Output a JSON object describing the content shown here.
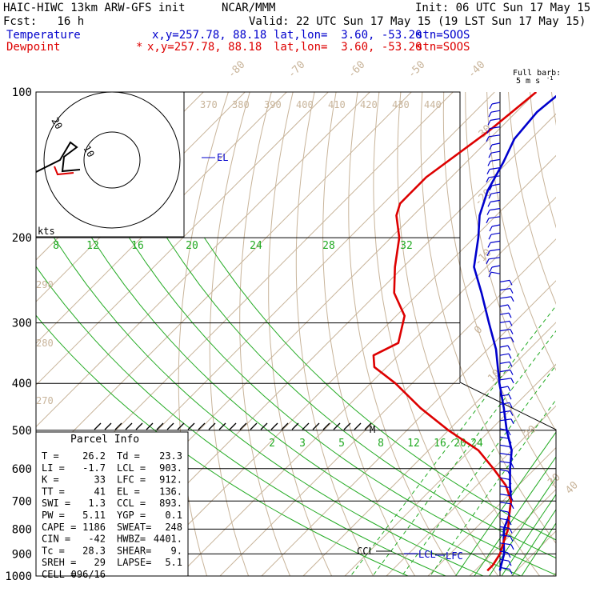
{
  "header": {
    "model": "HAIC-HIWC 13km ARW-GFS init",
    "org": "NCAR/MMM",
    "init": "Init: 06 UTC Sun 17 May 15",
    "fcst": "Fcst:   16 h",
    "valid": "Valid: 22 UTC Sun 17 May 15 (19 LST Sun 17 May 15)"
  },
  "legend": {
    "temperature": {
      "label": "Temperature",
      "xy": "x,y=257.78, 88.18",
      "latlon": "lat,lon=  3.60, -53.20",
      "stn": "stn=SOOS",
      "color": "#0000cc"
    },
    "dewpoint": {
      "label": "Dewpoint",
      "marker": "*",
      "xy": "x,y=257.78, 88.18",
      "latlon": "lat,lon=  3.60, -53.20",
      "stn": "stn=SOOS",
      "color": "#dd0000"
    }
  },
  "barb_title": {
    "line1": "Full barb:",
    "line2": "5 m s",
    "sup": "-1"
  },
  "hodograph": {
    "kts_label": "kts",
    "ring_labels": [
      "10",
      "20"
    ]
  },
  "parcel_info": {
    "title": "Parcel Info",
    "rows": [
      [
        "T  =",
        "26.2",
        "Td =",
        "23.3"
      ],
      [
        "LI =",
        "-1.7",
        "LCL =",
        "903."
      ],
      [
        "K  =",
        "33",
        "LFC =",
        "912."
      ],
      [
        "TT =",
        "41",
        "EL  =",
        "136."
      ],
      [
        "SWI =",
        "1.3",
        "CCL =",
        "893."
      ],
      [
        "PW =",
        "5.11",
        "YGP =",
        "0.1"
      ],
      [
        "CAPE =",
        "1186",
        "SWEAT=",
        "248"
      ],
      [
        "CIN =",
        "-42",
        "HWBZ=",
        "4401."
      ],
      [
        "Tc =",
        "28.3",
        "SHEAR=",
        "9."
      ],
      [
        "SREH =",
        "29",
        "LAPSE=",
        "5.1"
      ],
      [
        "CELL =",
        "096/16",
        "",
        ""
      ]
    ]
  },
  "annotations": {
    "el": "EL",
    "ccl": "CCL",
    "lcl": "LCL",
    "lfc": "LFC",
    "m": "M"
  },
  "chart_data": {
    "type": "line",
    "title": "",
    "pressure_levels": [
      "100",
      "200",
      "300",
      "400",
      "500",
      "600",
      "700",
      "800",
      "900",
      "1000"
    ],
    "isotherm_labels": [
      "-80",
      "-70",
      "-60",
      "-50",
      "-40",
      "-30",
      "-20",
      "-10",
      "0",
      "10",
      "20",
      "30",
      "40"
    ],
    "theta_labels": [
      "370",
      "380",
      "390",
      "400",
      "410",
      "420",
      "430",
      "440"
    ],
    "theta_side_labels": [
      "290",
      "280",
      "270"
    ],
    "mixing_ratio_labels": [
      "8",
      "12",
      "16",
      "20",
      "24",
      "28",
      "32"
    ],
    "mixing_ratio_labels_low": [
      "2",
      "3",
      "5",
      "8",
      "12",
      "16",
      "20",
      "24"
    ],
    "series": [
      {
        "name": "Temperature",
        "color": "#0000cc",
        "points": [
          [
            100,
            -74
          ],
          [
            110,
            -75
          ],
          [
            125,
            -74
          ],
          [
            140,
            -71
          ],
          [
            160,
            -68
          ],
          [
            180,
            -64
          ],
          [
            200,
            -59
          ],
          [
            230,
            -53
          ],
          [
            260,
            -45
          ],
          [
            300,
            -36
          ],
          [
            340,
            -28
          ],
          [
            400,
            -19
          ],
          [
            450,
            -12
          ],
          [
            500,
            -6
          ],
          [
            550,
            0
          ],
          [
            600,
            4
          ],
          [
            650,
            8
          ],
          [
            700,
            12
          ],
          [
            750,
            15
          ],
          [
            800,
            17
          ],
          [
            850,
            20
          ],
          [
            900,
            23
          ],
          [
            950,
            25
          ],
          [
            975,
            26
          ]
        ]
      },
      {
        "name": "Dewpoint",
        "color": "#dd0000",
        "points": [
          [
            100,
            -80
          ],
          [
            120,
            -82
          ],
          [
            150,
            -86
          ],
          [
            170,
            -86
          ],
          [
            180,
            -84
          ],
          [
            200,
            -78
          ],
          [
            230,
            -72
          ],
          [
            260,
            -66
          ],
          [
            290,
            -58
          ],
          [
            330,
            -53
          ],
          [
            350,
            -56
          ],
          [
            370,
            -53
          ],
          [
            400,
            -44
          ],
          [
            450,
            -32
          ],
          [
            500,
            -20
          ],
          [
            550,
            -8
          ],
          [
            600,
            0
          ],
          [
            650,
            7
          ],
          [
            700,
            12
          ],
          [
            750,
            15
          ],
          [
            800,
            18
          ],
          [
            850,
            20
          ],
          [
            900,
            22
          ],
          [
            950,
            23
          ],
          [
            975,
            23
          ]
        ]
      }
    ]
  }
}
